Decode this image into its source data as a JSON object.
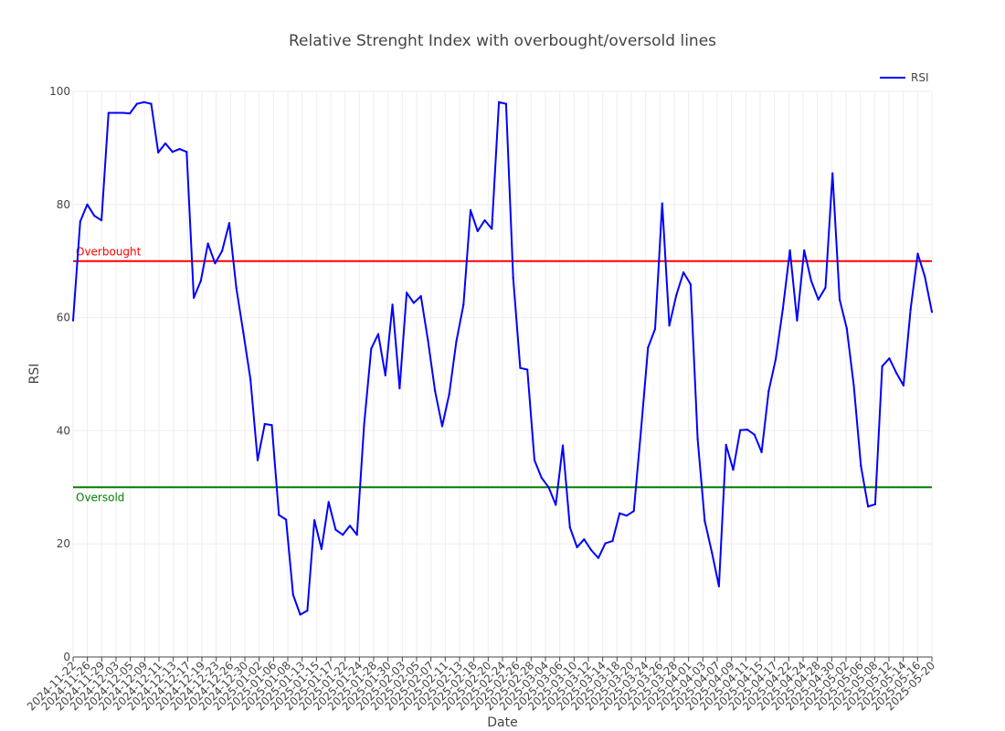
{
  "chart_data": {
    "type": "line",
    "title": "Relative Strenght Index with overbought/oversold lines",
    "xlabel": "Date",
    "ylabel": "RSI",
    "ylim": [
      0,
      100
    ],
    "y_ticks": [
      "0",
      "20",
      "40",
      "60",
      "80",
      "100"
    ],
    "grid": true,
    "legend_position": "top-right",
    "x_ticks": [
      "2024-11-22",
      "2024-11-26",
      "2024-11-29",
      "2024-12-03",
      "2024-12-05",
      "2024-12-09",
      "2024-12-11",
      "2024-12-13",
      "2024-12-17",
      "2024-12-19",
      "2024-12-23",
      "2024-12-26",
      "2024-12-30",
      "2025-01-02",
      "2025-01-06",
      "2025-01-08",
      "2025-01-13",
      "2025-01-15",
      "2025-01-17",
      "2025-01-22",
      "2025-01-24",
      "2025-01-28",
      "2025-01-30",
      "2025-02-03",
      "2025-02-05",
      "2025-02-07",
      "2025-02-11",
      "2025-02-13",
      "2025-02-18",
      "2025-02-20",
      "2025-02-24",
      "2025-02-26",
      "2025-02-28",
      "2025-03-04",
      "2025-03-06",
      "2025-03-10",
      "2025-03-12",
      "2025-03-14",
      "2025-03-18",
      "2025-03-20",
      "2025-03-24",
      "2025-03-26",
      "2025-03-28",
      "2025-04-01",
      "2025-04-03",
      "2025-04-07",
      "2025-04-09",
      "2025-04-11",
      "2025-04-15",
      "2025-04-17",
      "2025-04-22",
      "2025-04-24",
      "2025-04-28",
      "2025-04-30",
      "2025-05-02",
      "2025-05-06",
      "2025-05-08",
      "2025-05-12",
      "2025-05-14",
      "2025-05-16",
      "2025-05-20"
    ],
    "series": [
      {
        "name": "RSI",
        "color": "#0000ff",
        "values": [
          59.5,
          77,
          80,
          78,
          77.2,
          96.2,
          96.2,
          96.2,
          96.1,
          97.8,
          98.1,
          97.8,
          89.2,
          90.8,
          89.3,
          89.8,
          89.3,
          63.5,
          66.5,
          73.1,
          69.6,
          71.8,
          76.7,
          65.2,
          57.3,
          49,
          34.8,
          41.2,
          41,
          25.1,
          24.3,
          11,
          7.5,
          8.2,
          24.2,
          19.1,
          27.4,
          22.5,
          21.6,
          23.2,
          21.6,
          41,
          54.5,
          57.1,
          49.8,
          62.3,
          47.5,
          64.4,
          62.6,
          63.8,
          56,
          47,
          40.8,
          46.5,
          55.8,
          62.3,
          79,
          75.3,
          77.2,
          75.7,
          98.1,
          97.8,
          67,
          51.1,
          50.8,
          34.8,
          31.7,
          30,
          26.9,
          37.4,
          22.9,
          19.4,
          20.8,
          18.9,
          17.5,
          20.1,
          20.5,
          25.4,
          25,
          25.8,
          39.9,
          54.7,
          58,
          80.2,
          58.6,
          64,
          68,
          65.9,
          38.5,
          24,
          18.5,
          12.5,
          37.5,
          33.1,
          40.1,
          40.2,
          39.3,
          36.2,
          47,
          52.7,
          61.6,
          71.9,
          59.5,
          71.9,
          66.5,
          63.2,
          65.3,
          85.5,
          63.2,
          58.1,
          48,
          33.8,
          26.6,
          27,
          51.4,
          52.8,
          50.2,
          48,
          61.5,
          71.3,
          67.3,
          61
        ],
        "overbought_reference": 70,
        "oversold_reference": 30
      }
    ],
    "reference_lines": [
      {
        "label": "Overbought",
        "value": 70,
        "color": "#ff0000"
      },
      {
        "label": "Oversold",
        "value": 30,
        "color": "#008000"
      }
    ]
  }
}
